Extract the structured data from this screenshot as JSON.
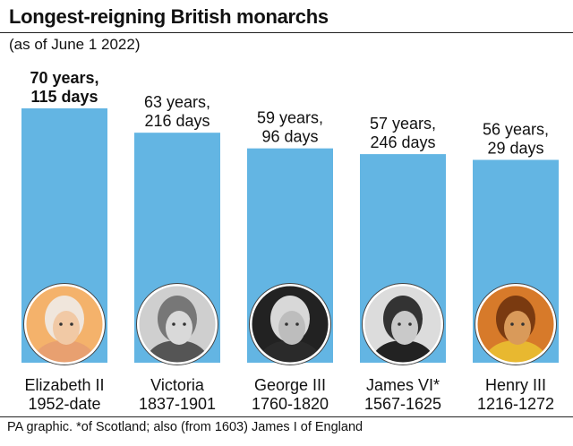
{
  "header": {
    "title": "Longest-reigning British monarchs",
    "subtitle": "(as of June 1 2022)"
  },
  "footer": {
    "note": "PA graphic. *of Scotland; also (from 1603) James I of England"
  },
  "colors": {
    "bar": "#63b5e3",
    "text": "#111111"
  },
  "chart_data": {
    "type": "bar",
    "title": "Longest-reigning British monarchs",
    "subtitle": "(as of June 1 2022)",
    "ylim": [
      0,
      80
    ],
    "grid": false,
    "categories": [
      "Elizabeth II",
      "Victoria",
      "George III",
      "James VI*",
      "Henry III"
    ],
    "reigns": [
      "1952-date",
      "1837-1901",
      "1760-1820",
      "1567-1625",
      "1216-1272"
    ],
    "value_labels": [
      [
        "70 years,",
        "115 days"
      ],
      [
        "63 years,",
        "216 days"
      ],
      [
        "59 years,",
        "96 days"
      ],
      [
        "57 years,",
        "246 days"
      ],
      [
        "56 years,",
        "29 days"
      ]
    ],
    "values": [
      70.32,
      63.59,
      59.26,
      57.67,
      56.08
    ],
    "highlight": [
      true,
      false,
      false,
      false,
      false
    ],
    "portrait_icons": [
      "elizabeth-ii-portrait-icon",
      "victoria-portrait-icon",
      "george-iii-portrait-icon",
      "james-vi-portrait-icon",
      "henry-iii-portrait-icon"
    ]
  }
}
